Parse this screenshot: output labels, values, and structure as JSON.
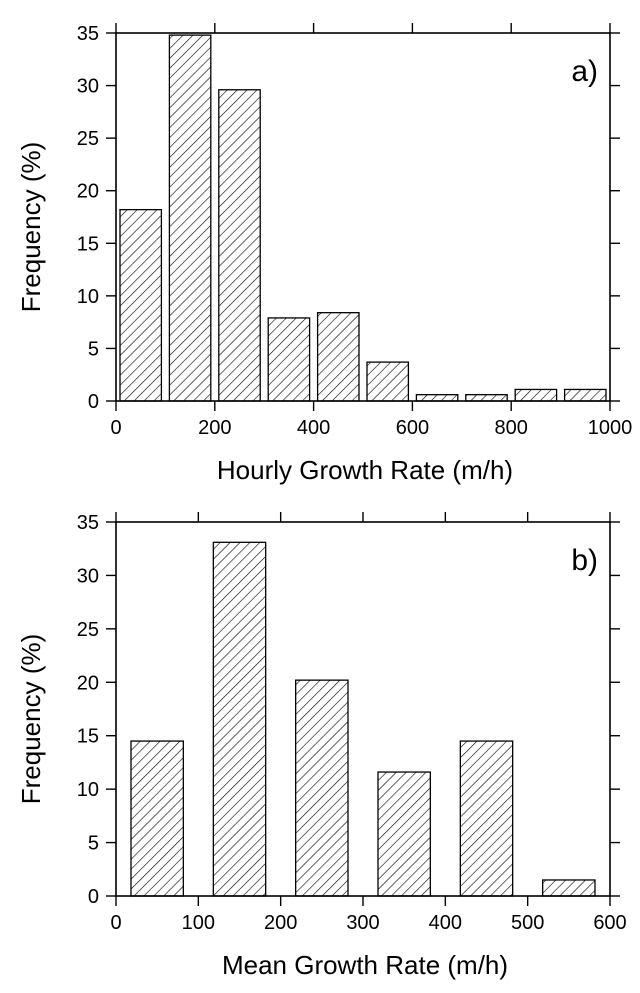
{
  "chart_data": [
    {
      "type": "bar",
      "panel_label": "a)",
      "xlabel": "Hourly Growth Rate (m/h)",
      "ylabel": "Frequency (%)",
      "xlim": [
        0,
        1000
      ],
      "ylim": [
        0,
        35
      ],
      "xticks": [
        0,
        200,
        400,
        600,
        800,
        1000
      ],
      "yticks": [
        0,
        5,
        10,
        15,
        20,
        25,
        30,
        35
      ],
      "bin_width": 100,
      "bins": [
        [
          0,
          100
        ],
        [
          100,
          200
        ],
        [
          200,
          300
        ],
        [
          300,
          400
        ],
        [
          400,
          500
        ],
        [
          500,
          600
        ],
        [
          600,
          700
        ],
        [
          700,
          800
        ],
        [
          800,
          900
        ],
        [
          900,
          1000
        ]
      ],
      "values": [
        18.2,
        34.8,
        29.6,
        7.9,
        8.4,
        3.7,
        0.6,
        0.6,
        1.1,
        1.1
      ],
      "bar_fill": "diagonal hatch",
      "grid": false
    },
    {
      "type": "bar",
      "panel_label": "b)",
      "xlabel": "Mean Growth Rate (m/h)",
      "ylabel": "Frequency (%)",
      "xlim": [
        0,
        600
      ],
      "ylim": [
        0,
        35
      ],
      "xticks": [
        0,
        100,
        200,
        300,
        400,
        500,
        600
      ],
      "yticks": [
        0,
        5,
        10,
        15,
        20,
        25,
        30,
        35
      ],
      "bin_width": 100,
      "bins": [
        [
          0,
          100
        ],
        [
          100,
          200
        ],
        [
          200,
          300
        ],
        [
          300,
          400
        ],
        [
          400,
          500
        ],
        [
          500,
          600
        ]
      ],
      "values": [
        14.5,
        33.1,
        20.2,
        11.6,
        14.5,
        1.5
      ],
      "bar_fill": "diagonal hatch",
      "grid": false
    }
  ]
}
